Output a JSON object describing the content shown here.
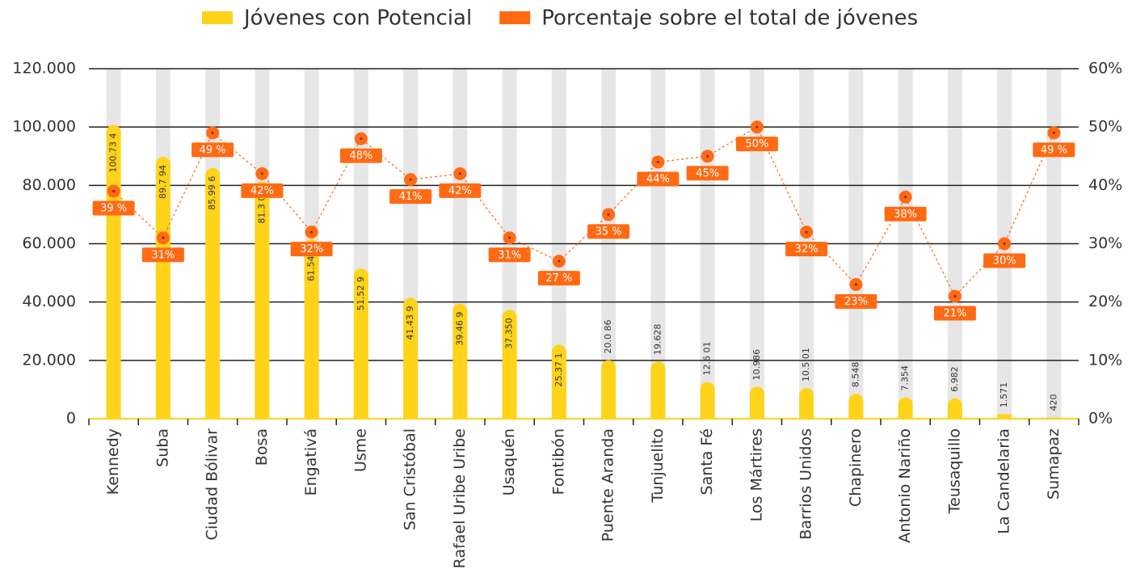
{
  "chart_data": {
    "type": "bar_line",
    "categories": [
      "Kennedy",
      "Suba",
      "Ciudad Bólivar",
      "Bosa",
      "Engativá",
      "Usme",
      "San Cristóbal",
      "Rafael Uribe Uribe",
      "Usaquén",
      "Fontibón",
      "Puente Aranda",
      "Tunjuelito",
      "Santa Fé",
      "Los Mártires",
      "Barrios Unidos",
      "Chapinero",
      "Antonio Nariño",
      "Teusaquillo",
      "La Candelaria",
      "Sumapaz"
    ],
    "series": [
      {
        "name": "Jóvenes con Potencial",
        "color": "#FFD319",
        "type": "bar",
        "values": [
          100734,
          89794,
          85996,
          81307,
          61545,
          51529,
          41439,
          39469,
          37350,
          25371,
          20086,
          19628,
          12601,
          10986,
          10501,
          8548,
          7354,
          6982,
          1571,
          420
        ],
        "value_labels": [
          "100.73 4",
          "89.7 94",
          "85.99 6",
          "81.3 07",
          "61.54 5",
          "51.52 9",
          "41.43 9",
          "39.46 9",
          "37.350",
          "25.37 1",
          "20.0 86",
          "19.628",
          "12.6 01",
          "10.986",
          "10.5 01",
          "8.548",
          "7.354",
          "6.982",
          "1.571",
          "420"
        ]
      },
      {
        "name": "Porcentaje sobre el total de jóvenes",
        "color": "#FF6A13",
        "type": "line",
        "axis": "y2",
        "values": [
          39,
          31,
          49,
          42,
          32,
          48,
          41,
          42,
          31,
          27,
          35,
          44,
          45,
          50,
          32,
          23,
          38,
          21,
          30,
          49
        ],
        "value_labels": [
          "39 %",
          "31%",
          "49 %",
          "42%",
          "32%",
          "48%",
          "41%",
          "42%",
          "31%",
          "27 %",
          "35 %",
          "44%",
          "45%",
          "50%",
          "32%",
          "23%",
          "38%",
          "21%",
          "30%",
          "49 %"
        ]
      }
    ],
    "ylim": [
      0,
      120000
    ],
    "yticks": [
      0,
      {
        "value": 20000,
        "label": "20.000"
      },
      {
        "value": 40000,
        "label": "40.000"
      },
      {
        "value": 60000,
        "label": "60.000"
      },
      {
        "value": 80000,
        "label": "80.000"
      },
      {
        "value": 100000,
        "label": "100.000"
      },
      {
        "value": 120000,
        "label": "120.000"
      }
    ],
    "y2lim": [
      0,
      60
    ],
    "y2ticks": [
      {
        "value": 0,
        "label": "0%"
      },
      {
        "value": 10,
        "label": "10%"
      },
      {
        "value": 20,
        "label": "20%"
      },
      {
        "value": 30,
        "label": "30%"
      },
      {
        "value": 40,
        "label": "40%"
      },
      {
        "value": 50,
        "label": "50%"
      },
      {
        "value": 60,
        "label": "60%"
      }
    ],
    "grid": true,
    "legend": "top"
  }
}
